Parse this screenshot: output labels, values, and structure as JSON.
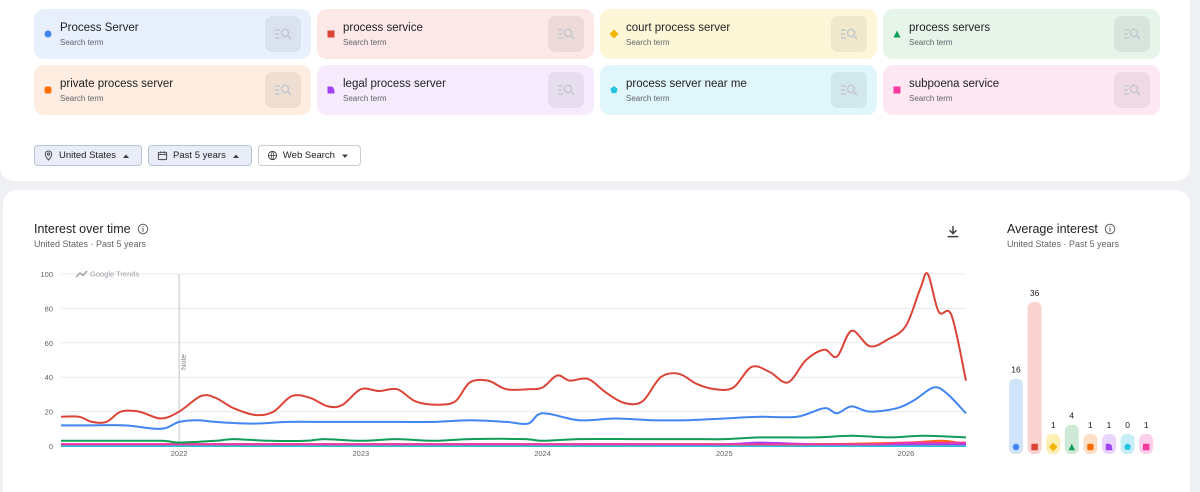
{
  "search_terms": [
    {
      "name": "Process Server",
      "sub": "Search term",
      "color": "#4285f4",
      "bg": "#e8f0fe",
      "marker": "circle"
    },
    {
      "name": "process service",
      "sub": "Search term",
      "color": "#db4437",
      "bg": "#fce8e6",
      "marker": "square"
    },
    {
      "name": "court process server",
      "sub": "Search term",
      "color": "#f4b400",
      "bg": "#fef7d7",
      "marker": "diamond"
    },
    {
      "name": "process servers",
      "sub": "Search term",
      "color": "#0f9d58",
      "bg": "#e6f4ea",
      "marker": "triangle"
    },
    {
      "name": "private process server",
      "sub": "Search term",
      "color": "#ff6d00",
      "bg": "#feede0",
      "marker": "rounded-square"
    },
    {
      "name": "legal process server",
      "sub": "Search term",
      "color": "#a142f4",
      "bg": "#f5ebfd",
      "marker": "leaf"
    },
    {
      "name": "process server near me",
      "sub": "Search term",
      "color": "#24c1e0",
      "bg": "#e0f6fb",
      "marker": "pentagon"
    },
    {
      "name": "subpoena service",
      "sub": "Search term",
      "color": "#f538a0",
      "bg": "#fde7f3",
      "marker": "square"
    }
  ],
  "filters": {
    "location": "United States",
    "time": "Past 5 years",
    "property": "Web Search"
  },
  "icons": {
    "search_term_button": "search-icon",
    "location": "location-pin-icon",
    "calendar": "calendar-icon",
    "globe": "globe-icon",
    "info": "info-icon",
    "download": "download-icon",
    "trend": "trend-icon"
  },
  "interest_over_time": {
    "title": "Interest over time",
    "subtitle": "United States · Past 5 years",
    "watermark": "Google Trends",
    "note_label": "Note"
  },
  "average_interest": {
    "title": "Average interest",
    "subtitle": "United States · Past 5 years"
  },
  "chart_data": [
    {
      "type": "line",
      "title": "Interest over time",
      "ylim": [
        0,
        100
      ],
      "yticks": [
        "0",
        "20",
        "40",
        "60",
        "80",
        "100"
      ],
      "xticks": [
        {
          "label": "2022",
          "x": 2022.0
        },
        {
          "label": "2023",
          "x": 2023.0
        },
        {
          "label": "2024",
          "x": 2024.0
        },
        {
          "label": "2025",
          "x": 2025.0
        },
        {
          "label": "2026",
          "x": 2026.0
        }
      ],
      "xlim": [
        2021.35,
        2026.33
      ],
      "note_x": 2022.0,
      "grid": true,
      "series": [
        {
          "name": "process service",
          "color": "#db4437",
          "points": [
            [
              2021.35,
              17
            ],
            [
              2021.45,
              17
            ],
            [
              2021.52,
              14
            ],
            [
              2021.6,
              14
            ],
            [
              2021.68,
              20
            ],
            [
              2021.78,
              20
            ],
            [
              2021.9,
              16
            ],
            [
              2022.0,
              20
            ],
            [
              2022.12,
              29
            ],
            [
              2022.2,
              28
            ],
            [
              2022.3,
              22
            ],
            [
              2022.42,
              18
            ],
            [
              2022.52,
              20
            ],
            [
              2022.62,
              29
            ],
            [
              2022.72,
              28
            ],
            [
              2022.82,
              23
            ],
            [
              2022.9,
              24
            ],
            [
              2023.0,
              33
            ],
            [
              2023.1,
              32
            ],
            [
              2023.2,
              33
            ],
            [
              2023.3,
              26
            ],
            [
              2023.42,
              24
            ],
            [
              2023.52,
              26
            ],
            [
              2023.6,
              37
            ],
            [
              2023.7,
              38
            ],
            [
              2023.8,
              33
            ],
            [
              2023.92,
              33
            ],
            [
              2024.0,
              34
            ],
            [
              2024.08,
              41
            ],
            [
              2024.15,
              38
            ],
            [
              2024.25,
              39
            ],
            [
              2024.35,
              31
            ],
            [
              2024.45,
              25
            ],
            [
              2024.55,
              26
            ],
            [
              2024.65,
              40
            ],
            [
              2024.75,
              42
            ],
            [
              2024.85,
              36
            ],
            [
              2024.95,
              33
            ],
            [
              2025.05,
              34
            ],
            [
              2025.15,
              46
            ],
            [
              2025.25,
              43
            ],
            [
              2025.35,
              37
            ],
            [
              2025.45,
              50
            ],
            [
              2025.55,
              56
            ],
            [
              2025.62,
              52
            ],
            [
              2025.7,
              67
            ],
            [
              2025.8,
              58
            ],
            [
              2025.9,
              62
            ],
            [
              2026.0,
              70
            ],
            [
              2026.08,
              92
            ],
            [
              2026.12,
              100
            ],
            [
              2026.18,
              78
            ],
            [
              2026.25,
              76
            ],
            [
              2026.33,
              38
            ]
          ]
        },
        {
          "name": "Process Server",
          "color": "#4285f4",
          "points": [
            [
              2021.35,
              12
            ],
            [
              2021.5,
              12
            ],
            [
              2021.7,
              12
            ],
            [
              2021.9,
              10
            ],
            [
              2022.0,
              14
            ],
            [
              2022.1,
              15
            ],
            [
              2022.2,
              14
            ],
            [
              2022.4,
              13
            ],
            [
              2022.6,
              14
            ],
            [
              2022.8,
              14
            ],
            [
              2023.0,
              14
            ],
            [
              2023.2,
              14
            ],
            [
              2023.4,
              14
            ],
            [
              2023.6,
              15
            ],
            [
              2023.8,
              14
            ],
            [
              2023.92,
              13
            ],
            [
              2024.0,
              19
            ],
            [
              2024.2,
              15
            ],
            [
              2024.4,
              16
            ],
            [
              2024.6,
              15
            ],
            [
              2024.8,
              15
            ],
            [
              2025.0,
              16
            ],
            [
              2025.2,
              17
            ],
            [
              2025.4,
              17
            ],
            [
              2025.55,
              22
            ],
            [
              2025.62,
              19
            ],
            [
              2025.7,
              23
            ],
            [
              2025.8,
              20
            ],
            [
              2025.95,
              22
            ],
            [
              2026.05,
              27
            ],
            [
              2026.15,
              34
            ],
            [
              2026.22,
              31
            ],
            [
              2026.33,
              19
            ]
          ]
        },
        {
          "name": "process servers",
          "color": "#0f9d58",
          "points": [
            [
              2021.35,
              3
            ],
            [
              2021.6,
              3
            ],
            [
              2021.9,
              3
            ],
            [
              2022.0,
              2
            ],
            [
              2022.2,
              3
            ],
            [
              2022.3,
              4
            ],
            [
              2022.5,
              3
            ],
            [
              2022.7,
              3
            ],
            [
              2022.8,
              4
            ],
            [
              2023.0,
              3
            ],
            [
              2023.2,
              4
            ],
            [
              2023.4,
              3
            ],
            [
              2023.6,
              4
            ],
            [
              2023.9,
              4
            ],
            [
              2024.0,
              3
            ],
            [
              2024.2,
              4
            ],
            [
              2024.5,
              4
            ],
            [
              2024.8,
              4
            ],
            [
              2025.0,
              4
            ],
            [
              2025.2,
              5
            ],
            [
              2025.5,
              5
            ],
            [
              2025.7,
              6
            ],
            [
              2025.9,
              5
            ],
            [
              2026.1,
              6
            ],
            [
              2026.33,
              5
            ]
          ]
        },
        {
          "name": "subpoena service",
          "color": "#f538a0",
          "points": [
            [
              2021.35,
              1
            ],
            [
              2021.8,
              1
            ],
            [
              2022.3,
              1
            ],
            [
              2022.8,
              1
            ],
            [
              2023.3,
              1
            ],
            [
              2023.8,
              1
            ],
            [
              2024.3,
              1
            ],
            [
              2024.8,
              1
            ],
            [
              2025.3,
              1
            ],
            [
              2025.8,
              1
            ],
            [
              2026.0,
              2
            ],
            [
              2026.2,
              2
            ],
            [
              2026.33,
              2
            ]
          ]
        },
        {
          "name": "legal process server",
          "color": "#a142f4",
          "points": [
            [
              2021.35,
              1
            ],
            [
              2022.0,
              1
            ],
            [
              2022.5,
              1
            ],
            [
              2023.0,
              1
            ],
            [
              2023.5,
              1
            ],
            [
              2024.0,
              1
            ],
            [
              2024.5,
              1
            ],
            [
              2025.0,
              1
            ],
            [
              2025.2,
              2
            ],
            [
              2025.5,
              1
            ],
            [
              2026.0,
              1
            ],
            [
              2026.33,
              1
            ]
          ]
        },
        {
          "name": "private process server",
          "color": "#ff6d00",
          "points": [
            [
              2021.35,
              1
            ],
            [
              2022.0,
              1
            ],
            [
              2022.5,
              1
            ],
            [
              2023.0,
              1
            ],
            [
              2023.5,
              1
            ],
            [
              2024.0,
              1
            ],
            [
              2024.5,
              1
            ],
            [
              2025.0,
              1
            ],
            [
              2025.5,
              1
            ],
            [
              2026.0,
              2
            ],
            [
              2026.2,
              3
            ],
            [
              2026.33,
              1
            ]
          ]
        },
        {
          "name": "court process server",
          "color": "#f4b400",
          "points": [
            [
              2021.35,
              1
            ],
            [
              2022.0,
              1
            ],
            [
              2023.0,
              1
            ],
            [
              2024.0,
              1
            ],
            [
              2025.0,
              1
            ],
            [
              2026.0,
              1
            ],
            [
              2026.33,
              1
            ]
          ]
        },
        {
          "name": "process server near me",
          "color": "#24c1e0",
          "points": [
            [
              2021.35,
              0
            ],
            [
              2022.0,
              0
            ],
            [
              2023.0,
              0
            ],
            [
              2024.0,
              0
            ],
            [
              2025.0,
              0
            ],
            [
              2026.0,
              0
            ],
            [
              2026.33,
              0
            ]
          ]
        }
      ]
    },
    {
      "type": "bar",
      "title": "Average interest",
      "categories": [
        "Process Server",
        "process service",
        "court process server",
        "process servers",
        "private process server",
        "legal process server",
        "process server near me",
        "subpoena service"
      ],
      "values": [
        16,
        36,
        1,
        4,
        1,
        1,
        0,
        1
      ],
      "value_labels": [
        "16",
        "36",
        "1",
        "4",
        "1",
        "1",
        "0",
        "1"
      ],
      "colors": [
        "#4285f4",
        "#db4437",
        "#f4b400",
        "#0f9d58",
        "#ff6d00",
        "#a142f4",
        "#24c1e0",
        "#f538a0"
      ],
      "bar_colors": [
        "#d2e3fc",
        "#fad2cf",
        "#fdeeb2",
        "#ceead6",
        "#fedfc8",
        "#ead6fc",
        "#c6eef7",
        "#fcd0e8"
      ],
      "markers": [
        "circle",
        "square",
        "diamond",
        "triangle",
        "rounded-square",
        "leaf",
        "pentagon",
        "square"
      ],
      "ylim": [
        0,
        36
      ]
    }
  ]
}
